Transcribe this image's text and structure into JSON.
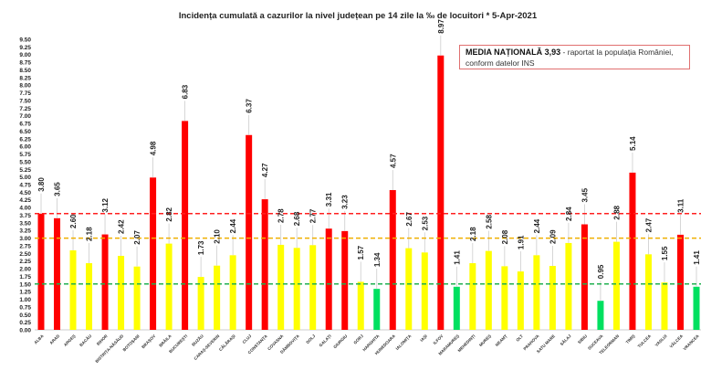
{
  "chart_data": {
    "type": "bar",
    "title": "Incidența cumulată a cazurilor la nivel județean pe 14 zile la ‰ de locuitori *  5-Apr-2021",
    "xlabel": "",
    "ylabel": "",
    "ylim": [
      0,
      9.5
    ],
    "ytick_step": 0.25,
    "grid": false,
    "categories": [
      "ALBA",
      "ARAD",
      "ARGEȘ",
      "BACĂU",
      "BIHOR",
      "BISTRIȚA-NĂSĂUD",
      "BOTOȘANI",
      "BRAȘOV",
      "BRĂILA",
      "BUCUREȘTI",
      "BUZĂU",
      "CARAȘ-SEVERIN",
      "CĂLĂRAȘI",
      "CLUJ",
      "CONSTANȚA",
      "COVASNA",
      "DÂMBOVIȚA",
      "DOLJ",
      "GALAȚI",
      "GIURGIU",
      "GORJ",
      "HARGHITA",
      "HUNEDOARA",
      "IALOMIȚA",
      "IAȘI",
      "ILFOV",
      "MARAMUREȘ",
      "MEHEDINȚI",
      "MUREȘ",
      "NEAMȚ",
      "OLT",
      "PRAHOVA",
      "SATU MARE",
      "SĂLAJ",
      "SIBIU",
      "SUCEAVA",
      "TELEORMAN",
      "TIMIȘ",
      "TULCEA",
      "VASLUI",
      "VÂLCEA",
      "VRANCEA"
    ],
    "values": [
      3.8,
      3.65,
      2.6,
      2.18,
      3.12,
      2.42,
      2.07,
      4.98,
      2.82,
      6.83,
      1.73,
      2.1,
      2.44,
      6.37,
      4.27,
      2.78,
      2.68,
      2.77,
      3.31,
      3.23,
      1.57,
      1.34,
      4.57,
      2.67,
      2.53,
      8.97,
      1.41,
      2.18,
      2.58,
      2.08,
      1.91,
      2.44,
      2.09,
      2.84,
      3.45,
      0.95,
      2.88,
      5.14,
      2.47,
      1.55,
      3.11,
      1.41
    ],
    "reference_lines": [
      {
        "value": 3.8,
        "color": "#ff2020"
      },
      {
        "value": 3.0,
        "color": "#f0b000"
      },
      {
        "value": 1.5,
        "color": "#20b050"
      }
    ],
    "colors": {
      "high": "#ff0000",
      "medium": "#ffff00",
      "low": "#00e060"
    },
    "annotation": {
      "bold": "MEDIA NAȚIONALĂ  3,93",
      "text": " - raportat la populația României, conform datelor INS"
    }
  }
}
